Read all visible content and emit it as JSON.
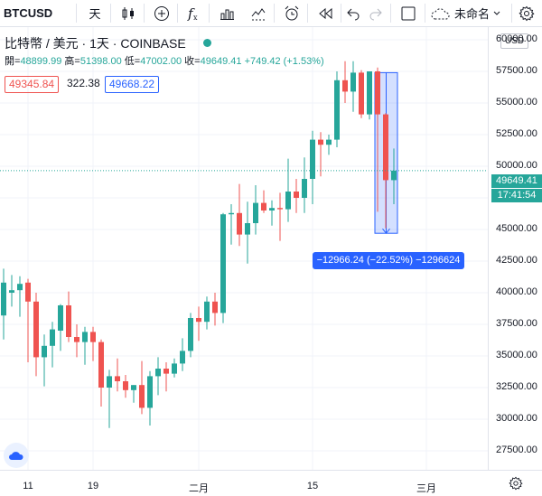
{
  "toolbar": {
    "symbol": "BTCUSD",
    "interval": "天",
    "layout_name": "未命名"
  },
  "legend": {
    "title": "比特幣 / 美元 · 1天 · COINBASE",
    "open_label": "開=",
    "open": "48899.99",
    "high_label": "高=",
    "high": "51398.00",
    "low_label": "低=",
    "low": "47002.00",
    "close_label": "收=",
    "close": "49649.41",
    "change": "+749.42 (+1.53%)"
  },
  "trade_panel": {
    "sell": "49345.84",
    "spread": "322.38",
    "buy": "49668.22"
  },
  "currency": "USD",
  "last_price": "49649.41",
  "countdown": "17:41:54",
  "measure": {
    "label": "−12966.24 (−22.52%) −1296624",
    "start": 57400,
    "end": 44700
  },
  "colors": {
    "up": "#26a69a",
    "down": "#ef5350",
    "accent": "#2962ff"
  },
  "chart_data": {
    "type": "candlestick",
    "ylim": [
      26000,
      61000
    ],
    "y_ticks": [
      "60000.00",
      "57500.00",
      "55000.00",
      "52500.00",
      "50000.00",
      "47500.00",
      "45000.00",
      "42500.00",
      "40000.00",
      "37500.00",
      "35000.00",
      "32500.00",
      "30000.00",
      "27500.00"
    ],
    "x_ticks": [
      {
        "label": "11",
        "index": 3
      },
      {
        "label": "19",
        "index": 11
      },
      {
        "label": "二月",
        "index": 24
      },
      {
        "label": "15",
        "index": 38
      },
      {
        "label": "三月",
        "index": 52
      }
    ],
    "ohlc": [
      [
        38200,
        41900,
        36300,
        40800
      ],
      [
        40000,
        41400,
        38900,
        40200
      ],
      [
        40200,
        41300,
        38100,
        40700
      ],
      [
        40800,
        41100,
        34500,
        39300
      ],
      [
        39300,
        40000,
        33400,
        34900
      ],
      [
        34900,
        36700,
        32600,
        35800
      ],
      [
        35800,
        37700,
        34100,
        37100
      ],
      [
        37000,
        39100,
        35400,
        39000
      ],
      [
        39000,
        40100,
        36100,
        36500
      ],
      [
        36500,
        37500,
        34900,
        36100
      ],
      [
        36100,
        37300,
        34300,
        36900
      ],
      [
        36900,
        37300,
        34600,
        36100
      ],
      [
        36100,
        36300,
        31000,
        32500
      ],
      [
        32500,
        33900,
        29300,
        33400
      ],
      [
        33400,
        34800,
        32200,
        33000
      ],
      [
        33000,
        33500,
        31700,
        32300
      ],
      [
        32300,
        32700,
        31300,
        32700
      ],
      [
        32700,
        34600,
        30400,
        30900
      ],
      [
        30900,
        33800,
        29500,
        33400
      ],
      [
        33400,
        34900,
        31900,
        34000
      ],
      [
        34000,
        34500,
        32200,
        33600
      ],
      [
        33600,
        34800,
        33300,
        34400
      ],
      [
        34400,
        36400,
        33800,
        35400
      ],
      [
        35400,
        38400,
        34900,
        38000
      ],
      [
        38000,
        38900,
        36200,
        37700
      ],
      [
        37700,
        39700,
        37100,
        39300
      ],
      [
        39300,
        40000,
        37400,
        38400
      ],
      [
        38400,
        46300,
        37600,
        46200
      ],
      [
        46200,
        47000,
        43800,
        46300
      ],
      [
        46300,
        48600,
        43700,
        44600
      ],
      [
        44600,
        47200,
        42300,
        45500
      ],
      [
        45500,
        48500,
        44600,
        47100
      ],
      [
        47100,
        48100,
        46300,
        46500
      ],
      [
        46500,
        47300,
        45300,
        46700
      ],
      [
        46700,
        47900,
        44100,
        46600
      ],
      [
        46600,
        50600,
        45600,
        48000
      ],
      [
        48000,
        49000,
        46300,
        47500
      ],
      [
        47500,
        50700,
        46300,
        49000
      ],
      [
        49000,
        52800,
        47000,
        52100
      ],
      [
        52100,
        52700,
        49200,
        51700
      ],
      [
        51700,
        52500,
        50900,
        52100
      ],
      [
        52100,
        57500,
        51500,
        56800
      ],
      [
        56800,
        58300,
        55000,
        55900
      ],
      [
        55900,
        58300,
        54300,
        57400
      ],
      [
        57400,
        57600,
        53800,
        54100
      ],
      [
        54100,
        57500,
        53700,
        57500
      ],
      [
        57500,
        57800,
        46400,
        54100
      ],
      [
        54100,
        54200,
        45100,
        48900
      ],
      [
        48900,
        51400,
        47000,
        49650
      ]
    ]
  }
}
